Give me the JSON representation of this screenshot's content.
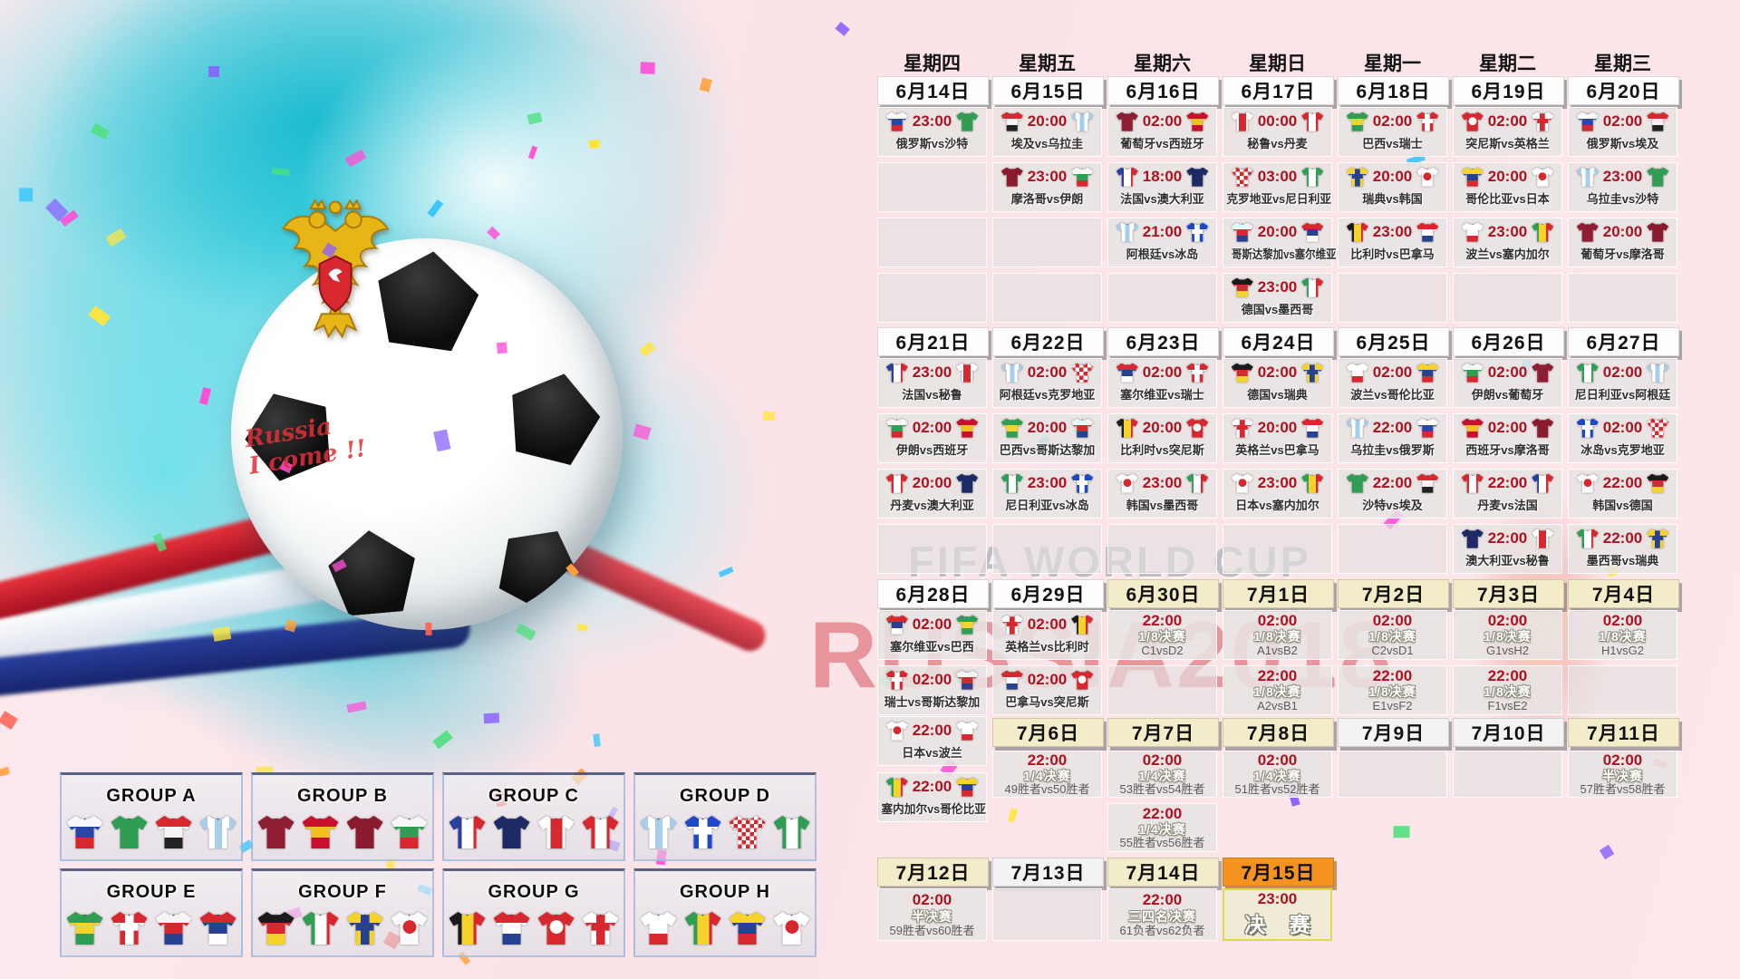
{
  "decor": {
    "fifa_watermark": "FIFA WORLD CUP",
    "russia_watermark": "RUSSIA2018",
    "ball_text": "Russia\nI come !!"
  },
  "colors": {
    "time_red": "#ad1220",
    "header_white": "#fdfdfd",
    "header_beige": "#f2edc8",
    "header_gray": "#f3f3f5",
    "header_orange": "#f6921e",
    "final_border": "#dedb49"
  },
  "weekdays": [
    "星期四",
    "星期五",
    "星期六",
    "星期日",
    "星期一",
    "星期二",
    "星期三"
  ],
  "calendar": {
    "rows": [
      {
        "cells": [
          {
            "t": "d",
            "v": "6月14日",
            "s": "w"
          },
          {
            "t": "d",
            "v": "6月15日",
            "s": "w"
          },
          {
            "t": "d",
            "v": "6月16日",
            "s": "w"
          },
          {
            "t": "d",
            "v": "6月17日",
            "s": "w"
          },
          {
            "t": "d",
            "v": "6月18日",
            "s": "w"
          },
          {
            "t": "d",
            "v": "6月19日",
            "s": "w"
          },
          {
            "t": "d",
            "v": "6月20日",
            "s": "w"
          }
        ]
      },
      {
        "cells": [
          {
            "t": "m",
            "time": "23:00",
            "h": "俄罗斯",
            "a": "沙特"
          },
          {
            "t": "m",
            "time": "20:00",
            "h": "埃及",
            "a": "乌拉圭"
          },
          {
            "t": "m",
            "time": "02:00",
            "h": "葡萄牙",
            "a": "西班牙"
          },
          {
            "t": "m",
            "time": "00:00",
            "h": "秘鲁",
            "a": "丹麦"
          },
          {
            "t": "m",
            "time": "02:00",
            "h": "巴西",
            "a": "瑞士"
          },
          {
            "t": "m",
            "time": "02:00",
            "h": "突尼斯",
            "a": "英格兰"
          },
          {
            "t": "m",
            "time": "02:00",
            "h": "俄罗斯",
            "a": "埃及"
          }
        ]
      },
      {
        "cells": [
          {
            "t": "e"
          },
          {
            "t": "m",
            "time": "23:00",
            "h": "摩洛哥",
            "a": "伊朗"
          },
          {
            "t": "m",
            "time": "18:00",
            "h": "法国",
            "a": "澳大利亚"
          },
          {
            "t": "m",
            "time": "03:00",
            "h": "克罗地亚",
            "a": "尼日利亚"
          },
          {
            "t": "m",
            "time": "20:00",
            "h": "瑞典",
            "a": "韩国"
          },
          {
            "t": "m",
            "time": "20:00",
            "h": "哥伦比亚",
            "a": "日本"
          },
          {
            "t": "m",
            "time": "23:00",
            "h": "乌拉圭",
            "a": "沙特"
          }
        ]
      },
      {
        "cells": [
          {
            "t": "e"
          },
          {
            "t": "e"
          },
          {
            "t": "m",
            "time": "21:00",
            "h": "阿根廷",
            "a": "冰岛"
          },
          {
            "t": "m",
            "time": "20:00",
            "h": "哥斯达黎加",
            "a": "塞尔维亚"
          },
          {
            "t": "m",
            "time": "23:00",
            "h": "比利时",
            "a": "巴拿马"
          },
          {
            "t": "m",
            "time": "23:00",
            "h": "波兰",
            "a": "塞内加尔"
          },
          {
            "t": "m",
            "time": "20:00",
            "h": "葡萄牙",
            "a": "摩洛哥"
          }
        ]
      },
      {
        "cells": [
          {
            "t": "e"
          },
          {
            "t": "e"
          },
          {
            "t": "e"
          },
          {
            "t": "m",
            "time": "23:00",
            "h": "德国",
            "a": "墨西哥"
          },
          {
            "t": "e"
          },
          {
            "t": "e"
          },
          {
            "t": "e"
          }
        ]
      },
      {
        "cells": [
          {
            "t": "d",
            "v": "6月21日",
            "s": "w"
          },
          {
            "t": "d",
            "v": "6月22日",
            "s": "w"
          },
          {
            "t": "d",
            "v": "6月23日",
            "s": "w"
          },
          {
            "t": "d",
            "v": "6月24日",
            "s": "w"
          },
          {
            "t": "d",
            "v": "6月25日",
            "s": "w"
          },
          {
            "t": "d",
            "v": "6月26日",
            "s": "w"
          },
          {
            "t": "d",
            "v": "6月27日",
            "s": "w"
          }
        ]
      },
      {
        "cells": [
          {
            "t": "m",
            "time": "23:00",
            "h": "法国",
            "a": "秘鲁"
          },
          {
            "t": "m",
            "time": "02:00",
            "h": "阿根廷",
            "a": "克罗地亚"
          },
          {
            "t": "m",
            "time": "02:00",
            "h": "塞尔维亚",
            "a": "瑞士"
          },
          {
            "t": "m",
            "time": "02:00",
            "h": "德国",
            "a": "瑞典"
          },
          {
            "t": "m",
            "time": "02:00",
            "h": "波兰",
            "a": "哥伦比亚"
          },
          {
            "t": "m",
            "time": "02:00",
            "h": "伊朗",
            "a": "葡萄牙"
          },
          {
            "t": "m",
            "time": "02:00",
            "h": "尼日利亚",
            "a": "阿根廷"
          }
        ]
      },
      {
        "cells": [
          {
            "t": "m",
            "time": "02:00",
            "h": "伊朗",
            "a": "西班牙"
          },
          {
            "t": "m",
            "time": "20:00",
            "h": "巴西",
            "a": "哥斯达黎加"
          },
          {
            "t": "m",
            "time": "20:00",
            "h": "比利时",
            "a": "突尼斯"
          },
          {
            "t": "m",
            "time": "20:00",
            "h": "英格兰",
            "a": "巴拿马"
          },
          {
            "t": "m",
            "time": "22:00",
            "h": "乌拉圭",
            "a": "俄罗斯"
          },
          {
            "t": "m",
            "time": "02:00",
            "h": "西班牙",
            "a": "摩洛哥"
          },
          {
            "t": "m",
            "time": "02:00",
            "h": "冰岛",
            "a": "克罗地亚"
          }
        ]
      },
      {
        "cells": [
          {
            "t": "m",
            "time": "20:00",
            "h": "丹麦",
            "a": "澳大利亚"
          },
          {
            "t": "m",
            "time": "23:00",
            "h": "尼日利亚",
            "a": "冰岛"
          },
          {
            "t": "m",
            "time": "23:00",
            "h": "韩国",
            "a": "墨西哥"
          },
          {
            "t": "m",
            "time": "23:00",
            "h": "日本",
            "a": "塞内加尔"
          },
          {
            "t": "m",
            "time": "22:00",
            "h": "沙特",
            "a": "埃及"
          },
          {
            "t": "m",
            "time": "22:00",
            "h": "丹麦",
            "a": "法国"
          },
          {
            "t": "m",
            "time": "22:00",
            "h": "韩国",
            "a": "德国"
          }
        ]
      },
      {
        "cells": [
          {
            "t": "e"
          },
          {
            "t": "e"
          },
          {
            "t": "e"
          },
          {
            "t": "e"
          },
          {
            "t": "e"
          },
          {
            "t": "m",
            "time": "22:00",
            "h": "澳大利亚",
            "a": "秘鲁"
          },
          {
            "t": "m",
            "time": "22:00",
            "h": "墨西哥",
            "a": "瑞典"
          }
        ]
      },
      {
        "cells": [
          {
            "t": "d",
            "v": "6月28日",
            "s": "w"
          },
          {
            "t": "d",
            "v": "6月29日",
            "s": "w"
          },
          {
            "t": "d",
            "v": "6月30日",
            "s": "b"
          },
          {
            "t": "d",
            "v": "7月1日",
            "s": "b"
          },
          {
            "t": "d",
            "v": "7月2日",
            "s": "b"
          },
          {
            "t": "d",
            "v": "7月3日",
            "s": "b"
          },
          {
            "t": "d",
            "v": "7月4日",
            "s": "b"
          }
        ]
      },
      {
        "cells": [
          {
            "t": "m",
            "time": "02:00",
            "h": "塞尔维亚",
            "a": "巴西"
          },
          {
            "t": "m",
            "time": "02:00",
            "h": "英格兰",
            "a": "比利时"
          },
          {
            "t": "k",
            "time": "22:00",
            "stage": "1/8决赛",
            "pair": "C1vsD2"
          },
          {
            "t": "k",
            "time": "02:00",
            "stage": "1/8决赛",
            "pair": "A1vsB2"
          },
          {
            "t": "k",
            "time": "02:00",
            "stage": "1/8决赛",
            "pair": "C2vsD1"
          },
          {
            "t": "k",
            "time": "02:00",
            "stage": "1/8决赛",
            "pair": "G1vsH2"
          },
          {
            "t": "k",
            "time": "02:00",
            "stage": "1/8决赛",
            "pair": "H1vsG2"
          }
        ]
      },
      {
        "cells": [
          {
            "t": "m",
            "time": "02:00",
            "h": "瑞士",
            "a": "哥斯达黎加"
          },
          {
            "t": "m",
            "time": "02:00",
            "h": "巴拿马",
            "a": "突尼斯"
          },
          {
            "t": "e"
          },
          {
            "t": "k",
            "time": "22:00",
            "stage": "1/8决赛",
            "pair": "A2vsB1"
          },
          {
            "t": "k",
            "time": "22:00",
            "stage": "1/8决赛",
            "pair": "E1vsF2"
          },
          {
            "t": "k",
            "time": "22:00",
            "stage": "1/8决赛",
            "pair": "F1vsE2"
          },
          {
            "t": "e"
          }
        ]
      },
      {
        "cells": [
          {
            "t": "m",
            "time": "22:00",
            "h": "日本",
            "a": "波兰"
          },
          {
            "t": "d",
            "v": "7月6日",
            "s": "b"
          },
          {
            "t": "d",
            "v": "7月7日",
            "s": "b"
          },
          {
            "t": "d",
            "v": "7月8日",
            "s": "b"
          },
          {
            "t": "d",
            "v": "7月9日",
            "s": "g"
          },
          {
            "t": "d",
            "v": "7月10日",
            "s": "g"
          },
          {
            "t": "d",
            "v": "7月11日",
            "s": "b"
          }
        ]
      },
      {
        "cells": [
          {
            "t": "m",
            "time": "22:00",
            "h": "塞内加尔",
            "a": "哥伦比亚"
          },
          {
            "t": "k",
            "time": "22:00",
            "stage": "1/4决赛",
            "pair": "49胜者vs50胜者"
          },
          {
            "t": "k",
            "time": "02:00",
            "stage": "1/4决赛",
            "pair": "53胜者vs54胜者"
          },
          {
            "t": "k",
            "time": "02:00",
            "stage": "1/4决赛",
            "pair": "51胜者vs52胜者"
          },
          {
            "t": "e"
          },
          {
            "t": "e"
          },
          {
            "t": "k",
            "time": "02:00",
            "stage": "半决赛",
            "pair": "57胜者vs58胜者"
          }
        ]
      },
      {
        "cells": [
          {
            "t": "n"
          },
          {
            "t": "n"
          },
          {
            "t": "k",
            "time": "22:00",
            "stage": "1/4决赛",
            "pair": "55胜者vs56胜者"
          },
          {
            "t": "n"
          },
          {
            "t": "n"
          },
          {
            "t": "n"
          },
          {
            "t": "n"
          }
        ]
      },
      {
        "cells": [
          {
            "t": "d",
            "v": "7月12日",
            "s": "b"
          },
          {
            "t": "d",
            "v": "7月13日",
            "s": "g"
          },
          {
            "t": "d",
            "v": "7月14日",
            "s": "b"
          },
          {
            "t": "d",
            "v": "7月15日",
            "s": "o"
          }
        ]
      },
      {
        "cells": [
          {
            "t": "k",
            "time": "02:00",
            "stage": "半决赛",
            "pair": "59胜者vs60胜者"
          },
          {
            "t": "e"
          },
          {
            "t": "k",
            "time": "22:00",
            "stage": "三四名决赛",
            "pair": "61负者vs62负者"
          },
          {
            "t": "f",
            "time": "23:00",
            "label": "决 赛"
          }
        ]
      }
    ]
  },
  "groups": [
    {
      "name": "GROUP A",
      "teams": [
        "俄罗斯",
        "沙特",
        "埃及",
        "乌拉圭"
      ]
    },
    {
      "name": "GROUP B",
      "teams": [
        "葡萄牙",
        "西班牙",
        "摩洛哥",
        "伊朗"
      ]
    },
    {
      "name": "GROUP C",
      "teams": [
        "法国",
        "澳大利亚",
        "秘鲁",
        "丹麦"
      ]
    },
    {
      "name": "GROUP D",
      "teams": [
        "阿根廷",
        "冰岛",
        "克罗地亚",
        "尼日利亚"
      ]
    },
    {
      "name": "GROUP E",
      "teams": [
        "巴西",
        "瑞士",
        "哥斯达黎加",
        "塞尔维亚"
      ]
    },
    {
      "name": "GROUP F",
      "teams": [
        "德国",
        "墨西哥",
        "瑞典",
        "韩国"
      ]
    },
    {
      "name": "GROUP G",
      "teams": [
        "比利时",
        "巴拿马",
        "突尼斯",
        "英格兰"
      ]
    },
    {
      "name": "GROUP H",
      "teams": [
        "波兰",
        "塞内加尔",
        "哥伦比亚",
        "日本"
      ]
    }
  ],
  "team_colors": {
    "俄罗斯": {
      "p": "hbands",
      "c": [
        "#f7f8fb",
        "#2746a8",
        "#d7282f"
      ]
    },
    "沙特": {
      "p": "solid",
      "c": [
        "#2f9e52"
      ]
    },
    "埃及": {
      "p": "hbands",
      "c": [
        "#d7282f",
        "#f4f4f4",
        "#222222"
      ]
    },
    "乌拉圭": {
      "p": "vstripes",
      "c": [
        "#a6cdec",
        "#ffffff",
        "#a6cdec",
        "#ffffff",
        "#a6cdec"
      ]
    },
    "葡萄牙": {
      "p": "solid",
      "c": [
        "#8f1d33"
      ]
    },
    "西班牙": {
      "p": "hbands",
      "c": [
        "#c8102e",
        "#f2bf22",
        "#c8102e"
      ]
    },
    "摩洛哥": {
      "p": "solid",
      "c": [
        "#8a1b2e"
      ]
    },
    "伊朗": {
      "p": "hbands",
      "c": [
        "#f6f6f6",
        "#2f9e52",
        "#d7282f"
      ]
    },
    "法国": {
      "p": "vstripes",
      "c": [
        "#2a3f9e",
        "#ffffff",
        "#d7282f"
      ]
    },
    "澳大利亚": {
      "p": "solid",
      "c": [
        "#1d2a66"
      ]
    },
    "秘鲁": {
      "p": "vstripes",
      "c": [
        "#ffffff",
        "#d7282f",
        "#ffffff"
      ]
    },
    "丹麦": {
      "p": "vstripes",
      "c": [
        "#d7282f",
        "#ffffff",
        "#d7282f"
      ]
    },
    "阿根廷": {
      "p": "vstripes",
      "c": [
        "#a6cdec",
        "#ffffff",
        "#a6cdec",
        "#ffffff",
        "#a6cdec"
      ]
    },
    "冰岛": {
      "p": "cross",
      "c": [
        "#1d49c8",
        "#ffffff"
      ]
    },
    "克罗地亚": {
      "p": "checker",
      "c": [
        "#d7282f",
        "#ffffff"
      ]
    },
    "尼日利亚": {
      "p": "vstripes",
      "c": [
        "#2f9e52",
        "#ffffff",
        "#2f9e52"
      ]
    },
    "巴西": {
      "p": "hbands",
      "c": [
        "#2f9e52",
        "#f6d32a",
        "#2f9e52"
      ]
    },
    "瑞士": {
      "p": "cross",
      "c": [
        "#d7282f",
        "#ffffff"
      ]
    },
    "哥斯达黎加": {
      "p": "hbands",
      "c": [
        "#f5f5f5",
        "#d7282f",
        "#27408f"
      ]
    },
    "塞尔维亚": {
      "p": "hbands",
      "c": [
        "#d7282f",
        "#27408f",
        "#ffffff"
      ]
    },
    "德国": {
      "p": "hbands",
      "c": [
        "#1a1a1a",
        "#d7282f",
        "#f6d32a"
      ]
    },
    "墨西哥": {
      "p": "vstripes",
      "c": [
        "#2f9e52",
        "#ffffff",
        "#d7282f"
      ]
    },
    "瑞典": {
      "p": "cross",
      "c": [
        "#f6d32a",
        "#27408f"
      ]
    },
    "韩国": {
      "p": "circle",
      "c": [
        "#fafafa",
        "#d7282f"
      ]
    },
    "比利时": {
      "p": "vstripes",
      "c": [
        "#1a1a1a",
        "#f6d32a",
        "#d7282f"
      ]
    },
    "巴拿马": {
      "p": "hbands",
      "c": [
        "#d7282f",
        "#ffffff",
        "#27408f"
      ]
    },
    "突尼斯": {
      "p": "circle",
      "c": [
        "#d7282f",
        "#ffffff"
      ]
    },
    "英格兰": {
      "p": "cross",
      "c": [
        "#ffffff",
        "#d7282f"
      ]
    },
    "波兰": {
      "p": "hbands",
      "c": [
        "#ffffff",
        "#ffffff",
        "#d7282f"
      ]
    },
    "塞内加尔": {
      "p": "vstripes",
      "c": [
        "#2f9e52",
        "#f6d32a",
        "#d7282f"
      ]
    },
    "哥伦比亚": {
      "p": "hbands",
      "c": [
        "#f6d32a",
        "#27408f",
        "#d7282f"
      ]
    },
    "日本": {
      "p": "circle",
      "c": [
        "#ffffff",
        "#d7282f"
      ]
    }
  }
}
